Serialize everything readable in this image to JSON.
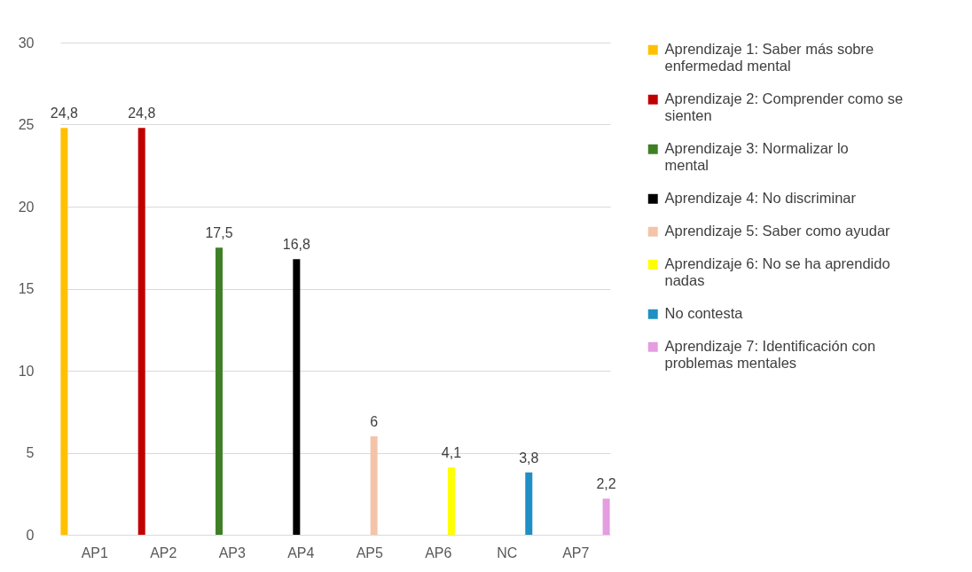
{
  "chart_data": {
    "type": "bar",
    "categories": [
      "AP1",
      "AP2",
      "AP3",
      "AP4",
      "AP5",
      "AP6",
      "NC",
      "AP7"
    ],
    "series": [
      {
        "name": "Aprendizaje 1: Saber más sobre enfermedad mental",
        "color": "#ffc000",
        "values": [
          24.8,
          null,
          null,
          null,
          null,
          null,
          null,
          null
        ],
        "value_labels": [
          "24,8",
          null,
          null,
          null,
          null,
          null,
          null,
          null
        ]
      },
      {
        "name": "Aprendizaje 2: Comprender como se sienten",
        "color": "#c00000",
        "values": [
          null,
          24.8,
          null,
          null,
          null,
          null,
          null,
          null
        ],
        "value_labels": [
          null,
          "24,8",
          null,
          null,
          null,
          null,
          null,
          null
        ]
      },
      {
        "name": "Aprendizaje 3: Normalizar lo mental",
        "color": "#3f7f26",
        "values": [
          null,
          null,
          17.5,
          null,
          null,
          null,
          null,
          null
        ],
        "value_labels": [
          null,
          null,
          "17,5",
          null,
          null,
          null,
          null,
          null
        ]
      },
      {
        "name": "Aprendizaje 4: No discriminar",
        "color": "#000000",
        "values": [
          null,
          null,
          null,
          16.8,
          null,
          null,
          null,
          null
        ],
        "value_labels": [
          null,
          null,
          null,
          "16,8",
          null,
          null,
          null,
          null
        ]
      },
      {
        "name": "Aprendizaje 5: Saber como ayudar",
        "color": "#f4c4a8",
        "values": [
          null,
          null,
          null,
          null,
          6,
          null,
          null,
          null
        ],
        "value_labels": [
          null,
          null,
          null,
          null,
          "6",
          null,
          null,
          null
        ]
      },
      {
        "name": "Aprendizaje 6: No se ha aprendido nadas",
        "color": "#ffff00",
        "values": [
          null,
          null,
          null,
          null,
          null,
          4.1,
          null,
          null
        ],
        "value_labels": [
          null,
          null,
          null,
          null,
          null,
          "4,1",
          null,
          null
        ]
      },
      {
        "name": "No contesta",
        "color": "#1f8fc4",
        "values": [
          null,
          null,
          null,
          null,
          null,
          null,
          3.8,
          null
        ],
        "value_labels": [
          null,
          null,
          null,
          null,
          null,
          null,
          "3,8",
          null
        ]
      },
      {
        "name": "Aprendizaje 7: Identificación con problemas mentales",
        "color": "#e39de0",
        "values": [
          null,
          null,
          null,
          null,
          null,
          null,
          null,
          2.2
        ],
        "value_labels": [
          null,
          null,
          null,
          null,
          null,
          null,
          null,
          "2,2"
        ]
      }
    ],
    "ylim": [
      0,
      30
    ],
    "yticks": [
      0,
      5,
      10,
      15,
      20,
      25,
      30
    ],
    "grid": "y",
    "legend": "right"
  }
}
